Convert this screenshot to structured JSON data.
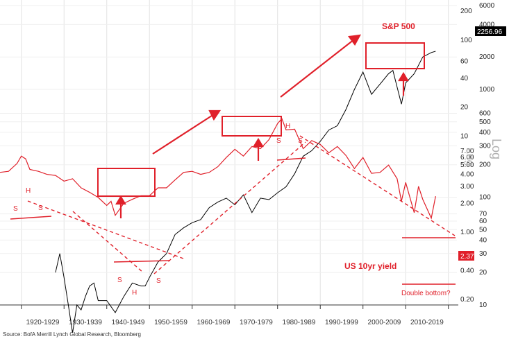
{
  "colors": {
    "accent": "#e0202a",
    "spx_line": "#000000",
    "yield_line": "#e0202a",
    "grid": "#d9d9d9",
    "value_box_spx": "#000000",
    "value_box_yield": "#e0202a"
  },
  "annotations": {
    "spx_label": "S&P 500",
    "yield_label": "US 10yr yield",
    "double_bottom": "Double bottom?",
    "log_outer": "Log",
    "log_inner": "Log",
    "h1": "H",
    "s1a": "S",
    "s1b": "S",
    "h2": "H",
    "s2a": "S",
    "s2b": "S",
    "h3": "H",
    "s3a": "S",
    "s3b": "S"
  },
  "source": "Source: BofA Merrill Lynch Global Research, Bloomberg",
  "value_boxes": {
    "spx": "2256.96",
    "yield": "2.37"
  },
  "chart_data": {
    "type": "line",
    "title": "",
    "x_tick_labels": [
      "1920-1929",
      "1930-1939",
      "1940-1949",
      "1950-1959",
      "1960-1969",
      "1970-1979",
      "1980-1989",
      "1990-1999",
      "2000-2009",
      "2010-2019"
    ],
    "x_range": [
      1915,
      2022
    ],
    "y_outer_ticks": [
      "10",
      "20",
      "30",
      "40",
      "50",
      "60",
      "70",
      "100",
      "200",
      "300",
      "400",
      "500",
      "600",
      "1000",
      "2000",
      "4000",
      "6000"
    ],
    "y_inner_ticks": [
      "0.20",
      "0.40",
      "0.60",
      "1.00",
      "2.00",
      "3.00",
      "4.00",
      "5.00",
      "6.00",
      "7.00",
      "10",
      "20",
      "40",
      "60",
      "100",
      "200"
    ],
    "axis_scale": "log",
    "series": [
      {
        "name": "S&P 500",
        "color": "#000000",
        "x": [
          1928,
          1929,
          1930,
          1931,
          1932,
          1933,
          1934,
          1935,
          1936,
          1937,
          1938,
          1940,
          1942,
          1944,
          1946,
          1948,
          1949,
          1950,
          1952,
          1954,
          1956,
          1958,
          1960,
          1962,
          1964,
          1966,
          1968,
          1970,
          1972,
          1974,
          1976,
          1978,
          1980,
          1982,
          1984,
          1986,
          1988,
          1990,
          1992,
          1994,
          1996,
          1998,
          2000,
          2002,
          2004,
          2006,
          2007,
          2009,
          2010,
          2012,
          2014,
          2016,
          2017
        ],
        "values": [
          20,
          30,
          18,
          10,
          5.5,
          10,
          9,
          12,
          15,
          16,
          11,
          11,
          8.5,
          12,
          16,
          15,
          15,
          18,
          25,
          30,
          45,
          52,
          58,
          62,
          80,
          90,
          98,
          85,
          105,
          72,
          98,
          95,
          110,
          125,
          165,
          240,
          270,
          330,
          420,
          460,
          650,
          1000,
          1450,
          900,
          1120,
          1400,
          1500,
          730,
          1150,
          1400,
          2000,
          2200,
          2256.96
        ]
      },
      {
        "name": "US 10yr yield",
        "color": "#e0202a",
        "x": [
          1915,
          1917,
          1919,
          1920,
          1921,
          1922,
          1924,
          1926,
          1928,
          1930,
          1932,
          1934,
          1936,
          1938,
          1940,
          1941,
          1942,
          1944,
          1946,
          1948,
          1950,
          1952,
          1954,
          1956,
          1958,
          1960,
          1962,
          1964,
          1966,
          1968,
          1970,
          1972,
          1974,
          1976,
          1978,
          1980,
          1981,
          1982,
          1984,
          1986,
          1988,
          1990,
          1992,
          1994,
          1996,
          1998,
          2000,
          2002,
          2004,
          2006,
          2008,
          2009,
          2010,
          2012,
          2013,
          2014,
          2016,
          2017
        ],
        "values": [
          4.2,
          4.3,
          5.2,
          6.2,
          5.8,
          4.5,
          4.3,
          4.0,
          3.9,
          3.4,
          3.6,
          2.9,
          2.6,
          2.3,
          1.9,
          2.1,
          1.5,
          2.0,
          2.2,
          2.4,
          2.4,
          2.9,
          2.9,
          3.5,
          4.2,
          4.3,
          4.0,
          4.2,
          4.8,
          6.0,
          7.3,
          6.2,
          7.8,
          7.4,
          9.2,
          13.5,
          15.2,
          11.6,
          11.8,
          7.4,
          9.0,
          8.2,
          6.7,
          7.8,
          6.3,
          4.6,
          6.0,
          4.1,
          4.2,
          5.0,
          3.6,
          2.1,
          3.3,
          1.6,
          3.0,
          2.2,
          1.4,
          2.37
        ]
      }
    ],
    "grid": true,
    "legend": "none"
  }
}
